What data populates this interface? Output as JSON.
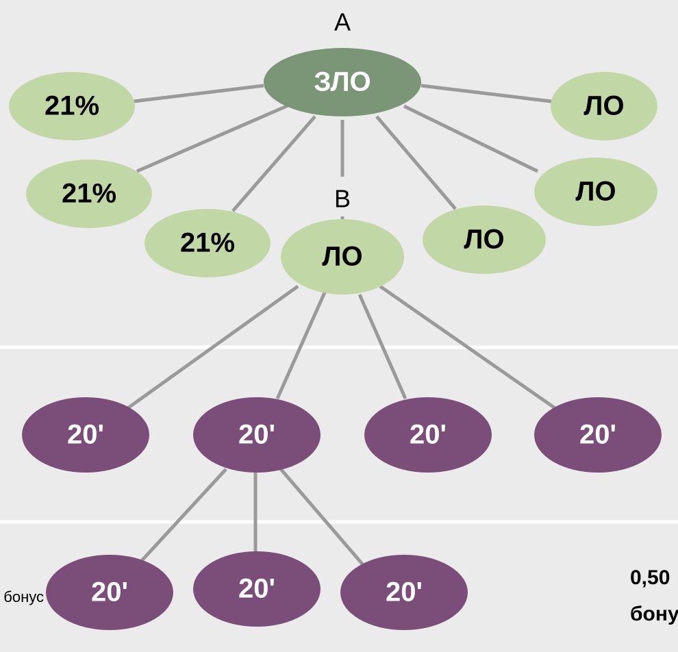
{
  "labels": {
    "a": "A",
    "b": "B",
    "left_note": "бонус",
    "right_note_1": "0,50",
    "right_note_2": "бонус"
  },
  "nodes": [
    {
      "label": "ЗЛО"
    },
    {
      "label": "21%"
    },
    {
      "label": "21%"
    },
    {
      "label": "21%"
    },
    {
      "label": "ЛО"
    },
    {
      "label": "ЛО"
    },
    {
      "label": "ЛО"
    },
    {
      "label": "ЛО"
    },
    {
      "label": "20'"
    },
    {
      "label": "20'"
    },
    {
      "label": "20'"
    },
    {
      "label": "20'"
    },
    {
      "label": "20'"
    },
    {
      "label": "20'"
    },
    {
      "label": "20'"
    }
  ]
}
